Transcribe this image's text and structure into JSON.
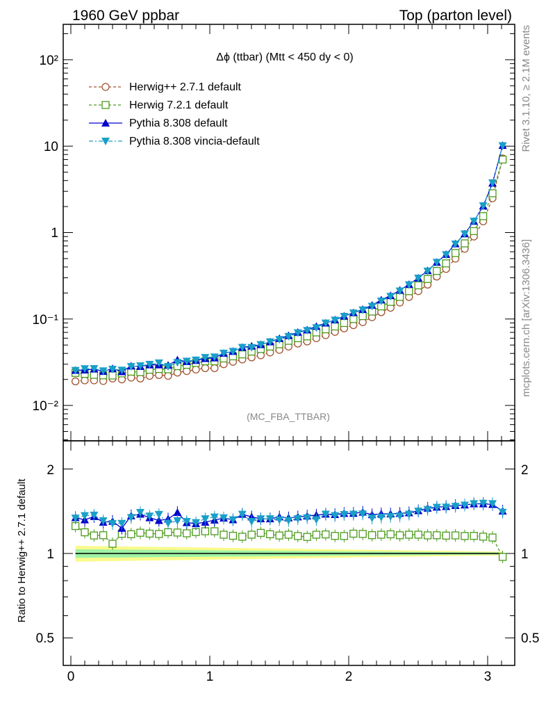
{
  "header": {
    "left_title": "1960 GeV ppbar",
    "right_title": "Top (parton level)"
  },
  "side_labels": {
    "rivet": "Rivet 3.1.10, ≥ 2.1M events",
    "mcplots": "mcplots.cern.ch [arXiv:1306.3436]"
  },
  "chart_data": {
    "type": "line",
    "title": "Δϕ (ttbar) (Mtt < 450 dy < 0)",
    "watermark": "(MC_FBA_TTBAR)",
    "xlabel": "",
    "ylabel": "",
    "xlim": [
      -0.05,
      3.19
    ],
    "ylim": [
      0.004,
      250
    ],
    "yscale": "log",
    "x_ticks": [
      "0",
      "1",
      "2",
      "3"
    ],
    "y_ticks": [
      "10⁻²",
      "10⁻¹",
      "1",
      "10",
      "10²"
    ],
    "legend_position": "top-left",
    "colors": {
      "herwig_pp": "#a0522d",
      "herwig7": "#4a9a1a",
      "pythia": "#0000cc",
      "vincia": "#1a9fc8",
      "band_inner": "#9df2a4",
      "band_outer": "#fafa8c"
    },
    "series": [
      {
        "name": "Herwig++ 2.7.1 default",
        "marker": "open-circle",
        "x": [
          0.033,
          0.1,
          0.167,
          0.233,
          0.3,
          0.367,
          0.434,
          0.5,
          0.567,
          0.634,
          0.7,
          0.767,
          0.834,
          0.9,
          0.967,
          1.034,
          1.1,
          1.167,
          1.234,
          1.301,
          1.367,
          1.434,
          1.501,
          1.567,
          1.634,
          1.701,
          1.767,
          1.834,
          1.901,
          1.967,
          2.034,
          2.101,
          2.168,
          2.234,
          2.301,
          2.368,
          2.434,
          2.501,
          2.568,
          2.634,
          2.701,
          2.768,
          2.835,
          2.901,
          2.968,
          3.035,
          3.108
        ],
        "values": [
          0.019,
          0.0195,
          0.0195,
          0.0192,
          0.0205,
          0.02,
          0.021,
          0.0205,
          0.022,
          0.0225,
          0.022,
          0.024,
          0.025,
          0.026,
          0.027,
          0.027,
          0.03,
          0.032,
          0.034,
          0.036,
          0.038,
          0.041,
          0.044,
          0.048,
          0.052,
          0.055,
          0.06,
          0.065,
          0.071,
          0.078,
          0.085,
          0.092,
          0.105,
          0.12,
          0.135,
          0.155,
          0.18,
          0.21,
          0.25,
          0.31,
          0.38,
          0.5,
          0.65,
          0.9,
          1.35,
          2.5,
          7.2
        ]
      },
      {
        "name": "Herwig 7.2.1 default",
        "marker": "open-square",
        "x": [
          0.033,
          0.1,
          0.167,
          0.233,
          0.3,
          0.367,
          0.434,
          0.5,
          0.567,
          0.634,
          0.7,
          0.767,
          0.834,
          0.9,
          0.967,
          1.034,
          1.1,
          1.167,
          1.234,
          1.301,
          1.367,
          1.434,
          1.501,
          1.567,
          1.634,
          1.701,
          1.767,
          1.834,
          1.901,
          1.967,
          2.034,
          2.101,
          2.168,
          2.234,
          2.301,
          2.368,
          2.434,
          2.501,
          2.568,
          2.634,
          2.701,
          2.768,
          2.835,
          2.901,
          2.968,
          3.035,
          3.108
        ],
        "values": [
          0.0238,
          0.0232,
          0.0226,
          0.0223,
          0.0222,
          0.0235,
          0.0246,
          0.0243,
          0.0259,
          0.0264,
          0.0262,
          0.0285,
          0.0295,
          0.031,
          0.0324,
          0.0324,
          0.035,
          0.037,
          0.039,
          0.042,
          0.045,
          0.048,
          0.051,
          0.056,
          0.06,
          0.063,
          0.07,
          0.076,
          0.082,
          0.09,
          0.1,
          0.108,
          0.122,
          0.14,
          0.158,
          0.18,
          0.21,
          0.245,
          0.29,
          0.36,
          0.44,
          0.58,
          0.75,
          1.04,
          1.55,
          2.85,
          7.0
        ]
      },
      {
        "name": "Pythia 8.308 default",
        "marker": "filled-triangle-up",
        "x": [
          0.033,
          0.1,
          0.167,
          0.233,
          0.3,
          0.367,
          0.434,
          0.5,
          0.567,
          0.634,
          0.7,
          0.767,
          0.834,
          0.9,
          0.967,
          1.034,
          1.1,
          1.167,
          1.234,
          1.301,
          1.367,
          1.434,
          1.501,
          1.567,
          1.634,
          1.701,
          1.767,
          1.834,
          1.901,
          1.967,
          2.034,
          2.101,
          2.168,
          2.234,
          2.301,
          2.368,
          2.434,
          2.501,
          2.568,
          2.634,
          2.701,
          2.768,
          2.835,
          2.901,
          2.968,
          3.035,
          3.108
        ],
        "values": [
          0.0255,
          0.0257,
          0.0264,
          0.0248,
          0.0267,
          0.0246,
          0.0286,
          0.0283,
          0.0295,
          0.0295,
          0.0292,
          0.0336,
          0.0322,
          0.0332,
          0.0349,
          0.0355,
          0.0401,
          0.0422,
          0.0469,
          0.0486,
          0.0505,
          0.0545,
          0.0594,
          0.0643,
          0.0702,
          0.0748,
          0.0822,
          0.0898,
          0.0977,
          0.1084,
          0.1182,
          0.1291,
          0.1443,
          0.1662,
          0.1867,
          0.2154,
          0.2514,
          0.2982,
          0.3625,
          0.4533,
          0.5586,
          0.7411,
          0.9681,
          1.3527,
          2.0291,
          3.7375,
          10.2
        ]
      },
      {
        "name": "Pythia 8.308 vincia-default",
        "marker": "filled-triangle-down",
        "x": [
          0.033,
          0.1,
          0.167,
          0.233,
          0.3,
          0.367,
          0.434,
          0.5,
          0.567,
          0.634,
          0.7,
          0.767,
          0.834,
          0.9,
          0.967,
          1.034,
          1.1,
          1.167,
          1.234,
          1.301,
          1.367,
          1.434,
          1.501,
          1.567,
          1.634,
          1.701,
          1.767,
          1.834,
          1.901,
          1.967,
          2.034,
          2.101,
          2.168,
          2.234,
          2.301,
          2.368,
          2.434,
          2.501,
          2.568,
          2.634,
          2.701,
          2.768,
          2.835,
          2.901,
          2.968,
          3.035,
          3.108
        ],
        "values": [
          0.0254,
          0.0266,
          0.0267,
          0.0251,
          0.0262,
          0.0256,
          0.0282,
          0.0287,
          0.0299,
          0.031,
          0.0282,
          0.0314,
          0.0325,
          0.0335,
          0.0359,
          0.0364,
          0.0402,
          0.0422,
          0.0469,
          0.0468,
          0.0505,
          0.0545,
          0.058,
          0.0629,
          0.0692,
          0.0737,
          0.0792,
          0.0897,
          0.0968,
          0.1074,
          0.1173,
          0.1273,
          0.1404,
          0.1614,
          0.1828,
          0.2108,
          0.2484,
          0.2972,
          0.3587,
          0.4526,
          0.5559,
          0.7359,
          0.9665,
          1.3545,
          2.039,
          3.7625,
          10.1
        ]
      }
    ],
    "ratio_panel": {
      "ylabel": "Ratio to Herwig++ 2.7.1 default",
      "ylim": [
        0.42,
        2.35
      ],
      "y_ticks": [
        "0.5",
        "1",
        "2"
      ],
      "reference_line": 1.0
    }
  }
}
